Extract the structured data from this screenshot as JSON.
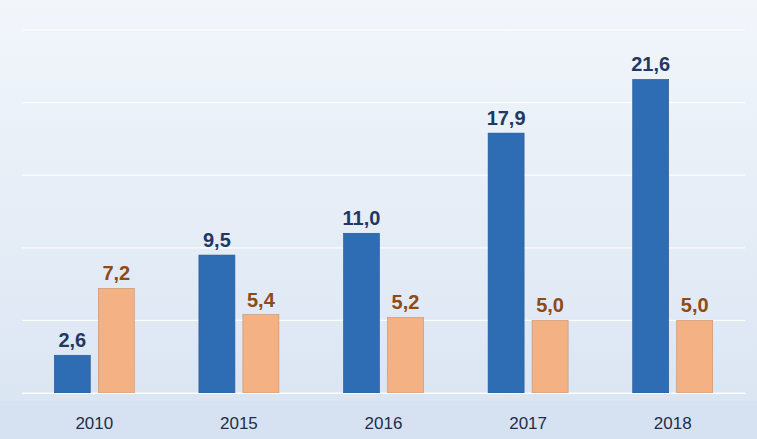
{
  "chart_data": {
    "type": "bar",
    "categories": [
      "2010",
      "2015",
      "2016",
      "2017",
      "2018"
    ],
    "series": [
      {
        "color": "#2e6db4",
        "values": [
          2.6,
          9.5,
          11.0,
          17.9,
          21.6
        ],
        "value_labels": [
          "2,6",
          "9,5",
          "11,0",
          "17,9",
          "21,6"
        ]
      },
      {
        "color": "#f4b183",
        "values": [
          7.2,
          5.4,
          5.2,
          5.0,
          5.0
        ],
        "value_labels": [
          "7,2",
          "5,4",
          "5,2",
          "5,0",
          "5,0"
        ]
      }
    ],
    "ylim": [
      0,
      25
    ],
    "yticks": [
      0,
      5,
      10,
      15,
      20,
      25
    ],
    "grid": true,
    "data_labels": true,
    "tick_labels": "x"
  }
}
